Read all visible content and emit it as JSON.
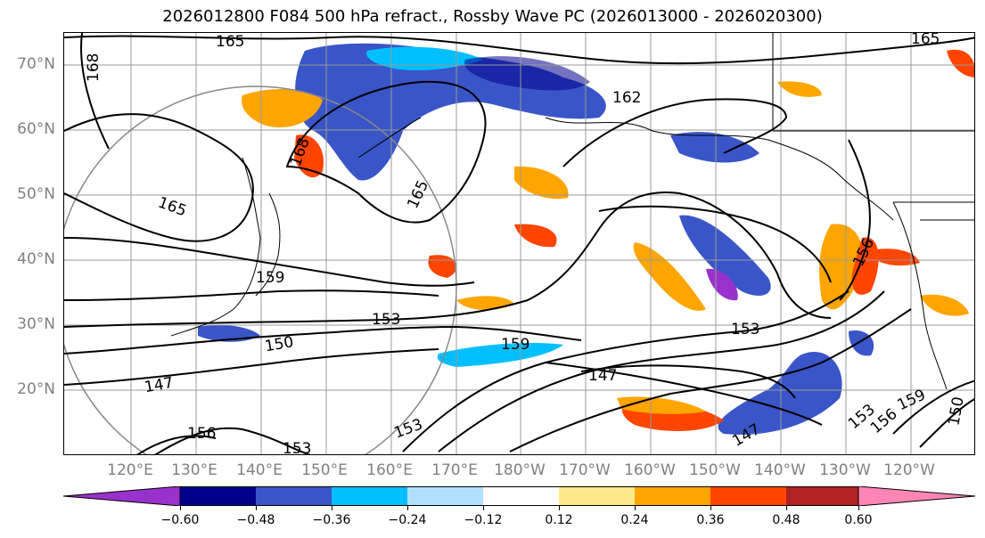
{
  "title": "2026012800 F084 500 hPa refract., Rossby Wave PC (2026013000 - 2026020300)",
  "map": {
    "lat_labels": [
      "70°N",
      "60°N",
      "50°N",
      "40°N",
      "30°N",
      "20°N"
    ],
    "lon_labels": [
      "120°E",
      "130°E",
      "140°E",
      "150°E",
      "160°E",
      "170°E",
      "180°W",
      "170°W",
      "160°W",
      "150°W",
      "140°W",
      "130°W",
      "120°W"
    ],
    "contour_labels": [
      "165",
      "168",
      "162",
      "168",
      "165",
      "165",
      "159",
      "153",
      "150",
      "147",
      "159",
      "147",
      "153",
      "156",
      "153",
      "159",
      "150",
      "156",
      "153",
      "147",
      "156",
      "153",
      "165"
    ]
  },
  "colorbar": {
    "ticks": [
      "−0.60",
      "−0.48",
      "−0.36",
      "−0.24",
      "−0.12",
      "0.12",
      "0.24",
      "0.36",
      "0.48",
      "0.60"
    ],
    "colors": [
      "#9932cc",
      "#00008b",
      "#3a55c8",
      "#00bfff",
      "#b0e0ff",
      "#ffffff",
      "#ffe98a",
      "#ffa500",
      "#ff4500",
      "#b22222",
      "#ff85b4"
    ]
  }
}
